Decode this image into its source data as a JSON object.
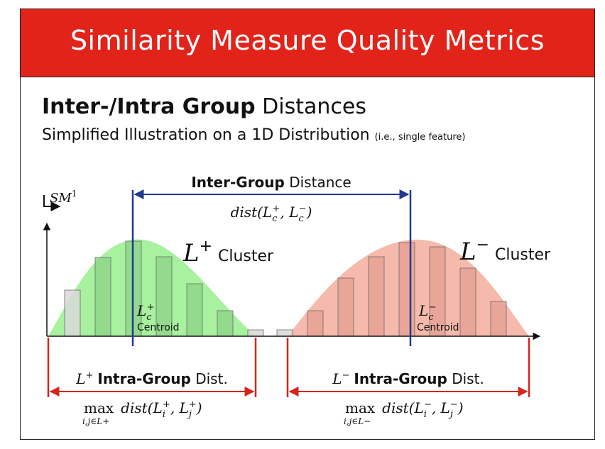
{
  "banner": {
    "title": "Similarity Measure Quality Metrics"
  },
  "heading": {
    "bold": "Inter-/Intra Group",
    "rest": "Distances"
  },
  "subheading": {
    "main": "Simplified Illustration on a 1D Distribution",
    "note": "(i.e., single feature)"
  },
  "axis": {
    "label": "SM",
    "superscript": "1"
  },
  "inter_group": {
    "bold": "Inter-Group",
    "rest": "Distance",
    "formula": "dist(L_c^+, L_c^-)"
  },
  "clusters": [
    {
      "symbol": "L",
      "sign": "+",
      "word": "Cluster",
      "centroid_label": "Centroid",
      "centroid_symbol": "L_c^+",
      "color": "#98ee8e",
      "bar_color": "#8fd68a"
    },
    {
      "symbol": "L",
      "sign": "−",
      "word": "Cluster",
      "centroid_label": "Centroid",
      "centroid_symbol": "L_c^-",
      "color": "#f4b2a3",
      "bar_color": "#e5a194"
    }
  ],
  "intra_group": [
    {
      "prefix": "L",
      "sign": "+",
      "bold": "Intra-Group",
      "rest": "Dist.",
      "formula": "max dist(L_i^+, L_j^+)",
      "subscript": "i,j∈L+"
    },
    {
      "prefix": "L",
      "sign": "−",
      "bold": "Intra-Group",
      "rest": "Dist.",
      "formula": "max dist(L_i^-, L_j^-)",
      "subscript": "i,j∈L−"
    }
  ],
  "colors": {
    "banner": "#e2231a",
    "inter_arrow": "#1f3a8f",
    "intra_arrow": "#d3251c",
    "gray_bar": "#d9d9d9"
  }
}
